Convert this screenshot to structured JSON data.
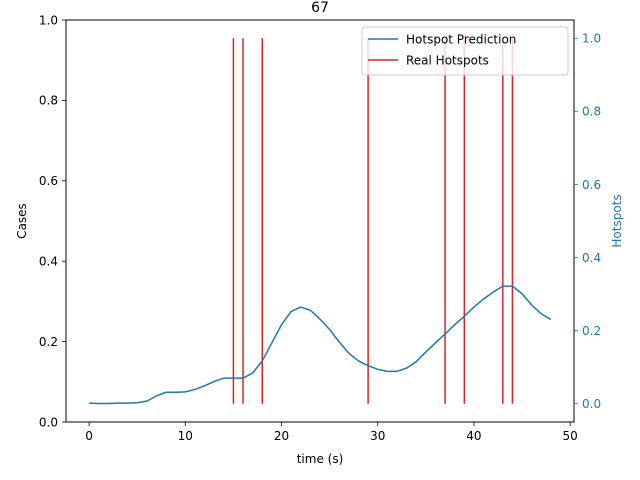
{
  "chart_data": {
    "type": "line",
    "title": "67",
    "xlabel": "time (s)",
    "ylabel_left": "Cases",
    "ylabel_right": "Hotspots",
    "xlim": [
      -2.4,
      50.4
    ],
    "ylim_left": [
      0,
      1
    ],
    "ylim_right": [
      -0.05,
      1.05
    ],
    "x_ticks": [
      0,
      10,
      20,
      30,
      40,
      50
    ],
    "y_ticks_left": [
      0.0,
      0.2,
      0.4,
      0.6,
      0.8,
      1.0
    ],
    "y_ticks_right": [
      0.0,
      0.2,
      0.4,
      0.6,
      0.8,
      1.0
    ],
    "left_tick_labels": [
      "0.0",
      "0.2",
      "0.4",
      "0.6",
      "0.8",
      "1.0"
    ],
    "right_tick_labels": [
      "0.0",
      "0.2",
      "0.4",
      "0.6",
      "0.8",
      "1.0"
    ],
    "x_tick_labels": [
      "0",
      "10",
      "20",
      "30",
      "40",
      "50"
    ],
    "grid": false,
    "legend_position": "top-right",
    "series": [
      {
        "name": "Hotspot Prediction",
        "color": "#1f77b4",
        "axis": "left",
        "x": [
          0,
          1,
          2,
          3,
          4,
          5,
          6,
          7,
          8,
          9,
          10,
          11,
          12,
          13,
          14,
          15,
          16,
          17,
          18,
          19,
          20,
          21,
          22,
          23,
          24,
          25,
          26,
          27,
          28,
          29,
          30,
          31,
          32,
          33,
          34,
          35,
          36,
          37,
          38,
          39,
          40,
          41,
          42,
          43,
          44,
          45,
          46,
          47,
          48
        ],
        "values": [
          0.047,
          0.046,
          0.046,
          0.047,
          0.047,
          0.048,
          0.052,
          0.065,
          0.074,
          0.074,
          0.075,
          0.081,
          0.09,
          0.101,
          0.109,
          0.109,
          0.109,
          0.122,
          0.152,
          0.197,
          0.242,
          0.275,
          0.286,
          0.278,
          0.256,
          0.23,
          0.199,
          0.171,
          0.152,
          0.14,
          0.131,
          0.126,
          0.126,
          0.134,
          0.15,
          0.174,
          0.197,
          0.219,
          0.242,
          0.263,
          0.286,
          0.306,
          0.323,
          0.338,
          0.338,
          0.319,
          0.291,
          0.269,
          0.255
        ]
      },
      {
        "name": "Real Hotspots",
        "color": "#d62728",
        "axis": "right",
        "type": "vlines",
        "x": [
          15,
          16,
          18,
          29,
          37,
          39,
          43,
          44
        ],
        "ymin": 0,
        "ymax": 1
      }
    ]
  }
}
